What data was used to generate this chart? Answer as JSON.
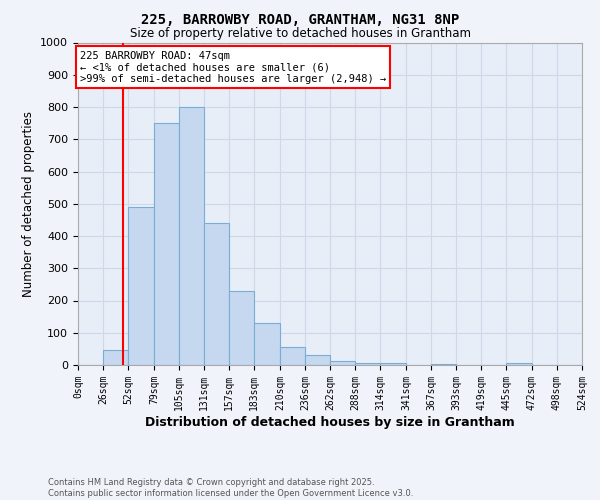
{
  "title": "225, BARROWBY ROAD, GRANTHAM, NG31 8NP",
  "subtitle": "Size of property relative to detached houses in Grantham",
  "xlabel": "Distribution of detached houses by size in Grantham",
  "ylabel": "Number of detached properties",
  "bin_edges": [
    0,
    26,
    52,
    79,
    105,
    131,
    157,
    183,
    210,
    236,
    262,
    288,
    314,
    341,
    367,
    393,
    419,
    445,
    472,
    498,
    524
  ],
  "bar_heights": [
    0,
    47,
    490,
    750,
    800,
    440,
    230,
    130,
    55,
    30,
    12,
    7,
    5,
    0,
    3,
    0,
    0,
    5,
    0,
    0
  ],
  "bar_color": "#c5d8f0",
  "bar_edgecolor": "#7aadd4",
  "grid_color": "#d0d8e8",
  "red_line_x": 47,
  "annotation_text": "225 BARROWBY ROAD: 47sqm\n← <1% of detached houses are smaller (6)\n>99% of semi-detached houses are larger (2,948) →",
  "annotation_box_color": "white",
  "annotation_box_edgecolor": "red",
  "ylim": [
    0,
    1000
  ],
  "yticks": [
    0,
    100,
    200,
    300,
    400,
    500,
    600,
    700,
    800,
    900,
    1000
  ],
  "footnote": "Contains HM Land Registry data © Crown copyright and database right 2025.\nContains public sector information licensed under the Open Government Licence v3.0.",
  "bg_color": "#f0f4fa",
  "plot_bg_color": "#e8eef8"
}
